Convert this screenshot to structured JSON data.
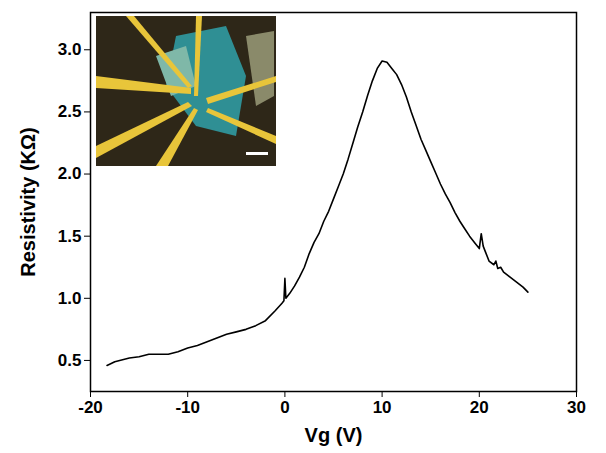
{
  "chart_data": {
    "type": "line",
    "x_label": "Vg (V)",
    "y_label": "Resistivity (KΩ)",
    "color": "#000000",
    "x": [
      -18.3,
      -17.5,
      -17,
      -16,
      -15,
      -14,
      -13,
      -12,
      -11,
      -10,
      -9,
      -8,
      -7,
      -6,
      -5,
      -4,
      -3,
      -2,
      -1,
      -0.3,
      -0.1,
      0,
      0.1,
      0.5,
      1,
      1.5,
      2,
      2.5,
      3,
      3.5,
      4,
      4.5,
      5,
      5.5,
      6,
      6.5,
      7,
      7.5,
      8,
      8.5,
      9,
      9.5,
      10,
      10.5,
      11,
      11.5,
      12,
      12.5,
      13,
      13.5,
      14,
      14.5,
      15,
      15.5,
      16,
      16.5,
      17,
      17.5,
      18,
      18.5,
      19,
      19.5,
      20,
      20.2,
      20.4,
      20.6,
      21,
      21.5,
      21.7,
      21.9,
      22.2,
      22.5,
      23,
      23.5,
      24,
      24.5,
      25
    ],
    "values": [
      0.46,
      0.49,
      0.5,
      0.52,
      0.53,
      0.55,
      0.55,
      0.55,
      0.57,
      0.6,
      0.62,
      0.65,
      0.68,
      0.71,
      0.73,
      0.75,
      0.78,
      0.82,
      0.9,
      0.96,
      0.98,
      1.16,
      1.0,
      1.04,
      1.1,
      1.17,
      1.25,
      1.36,
      1.45,
      1.52,
      1.62,
      1.7,
      1.8,
      1.9,
      2.0,
      2.12,
      2.25,
      2.38,
      2.5,
      2.63,
      2.75,
      2.85,
      2.91,
      2.9,
      2.85,
      2.8,
      2.72,
      2.62,
      2.5,
      2.39,
      2.28,
      2.19,
      2.1,
      2.01,
      1.92,
      1.84,
      1.77,
      1.69,
      1.62,
      1.56,
      1.5,
      1.45,
      1.4,
      1.52,
      1.42,
      1.38,
      1.3,
      1.27,
      1.3,
      1.24,
      1.25,
      1.21,
      1.18,
      1.15,
      1.12,
      1.09,
      1.05
    ],
    "xlim": [
      -20,
      30
    ],
    "xticks": [
      -20,
      -10,
      0,
      10,
      20,
      30
    ],
    "ylim": [
      0.25,
      3.3
    ],
    "yticks": [
      {
        "value": 0.5,
        "label": "0.5"
      },
      {
        "value": 1,
        "label": "1.0"
      },
      {
        "value": 1.5,
        "label": "1.5"
      },
      {
        "value": 2,
        "label": "2.0"
      },
      {
        "value": 2.5,
        "label": "2.5"
      },
      {
        "value": 3,
        "label": "3.0"
      }
    ],
    "grid": false
  }
}
